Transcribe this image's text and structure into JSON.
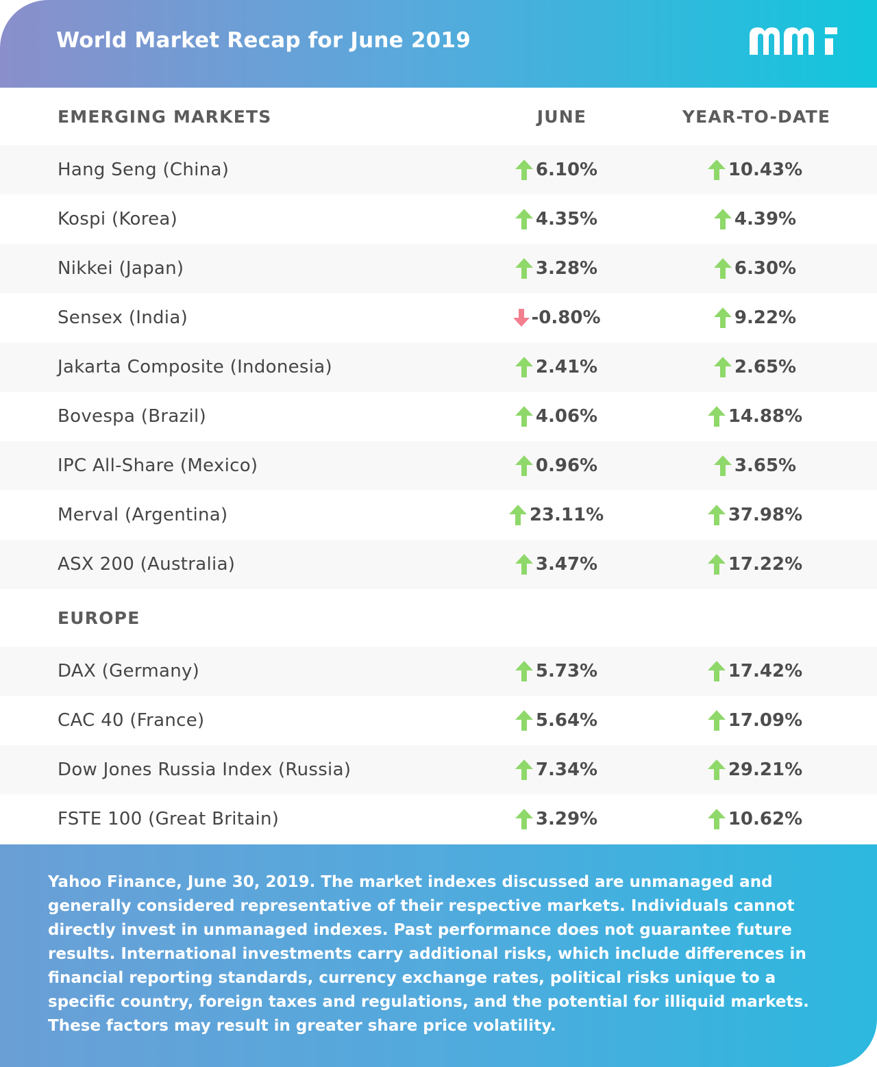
{
  "header": {
    "title": "World Market Recap for June 2019",
    "logo_icon": "mm-logo-icon"
  },
  "columns": {
    "name": "EMERGING MARKETS",
    "june": "JUNE",
    "ytd": "YEAR-TO-DATE"
  },
  "emerging": [
    {
      "name": "Hang Seng (China)",
      "june": "6.10%",
      "june_dir": "up",
      "ytd": "10.43%",
      "ytd_dir": "up"
    },
    {
      "name": "Kospi (Korea)",
      "june": "4.35%",
      "june_dir": "up",
      "ytd": "4.39%",
      "ytd_dir": "up"
    },
    {
      "name": "Nikkei (Japan)",
      "june": "3.28%",
      "june_dir": "up",
      "ytd": "6.30%",
      "ytd_dir": "up"
    },
    {
      "name": "Sensex (India)",
      "june": "-0.80%",
      "june_dir": "down",
      "ytd": "9.22%",
      "ytd_dir": "up"
    },
    {
      "name": "Jakarta Composite (Indonesia)",
      "june": "2.41%",
      "june_dir": "up",
      "ytd": "2.65%",
      "ytd_dir": "up"
    },
    {
      "name": "Bovespa (Brazil)",
      "june": "4.06%",
      "june_dir": "up",
      "ytd": "14.88%",
      "ytd_dir": "up"
    },
    {
      "name": "IPC All-Share (Mexico)",
      "june": "0.96%",
      "june_dir": "up",
      "ytd": "3.65%",
      "ytd_dir": "up"
    },
    {
      "name": "Merval (Argentina)",
      "june": "23.11%",
      "june_dir": "up",
      "ytd": "37.98%",
      "ytd_dir": "up"
    },
    {
      "name": "ASX 200 (Australia)",
      "june": "3.47%",
      "june_dir": "up",
      "ytd": "17.22%",
      "ytd_dir": "up"
    }
  ],
  "europe_heading": "EUROPE",
  "europe": [
    {
      "name": "DAX (Germany)",
      "june": "5.73%",
      "june_dir": "up",
      "ytd": "17.42%",
      "ytd_dir": "up"
    },
    {
      "name": "CAC 40 (France)",
      "june": "5.64%",
      "june_dir": "up",
      "ytd": "17.09%",
      "ytd_dir": "up"
    },
    {
      "name": "Dow Jones Russia Index (Russia)",
      "june": "7.34%",
      "june_dir": "up",
      "ytd": "29.21%",
      "ytd_dir": "up"
    },
    {
      "name": "FSTE 100 (Great Britain)",
      "june": "3.29%",
      "june_dir": "up",
      "ytd": "10.62%",
      "ytd_dir": "up"
    }
  ],
  "colors": {
    "up": "#8fd86a",
    "down": "#f27f8e"
  },
  "footer": {
    "text": "Yahoo Finance, June 30, 2019. The market indexes discussed are unmanaged and generally considered representative of their respective markets. Individuals cannot directly invest in unmanaged indexes. Past performance does not guarantee future results. International investments carry additional risks, which include differences in financial reporting standards, currency exchange rates, political risks unique to a specific country, foreign taxes and regulations, and the potential for illiquid markets. These factors may result in greater share price volatility."
  }
}
